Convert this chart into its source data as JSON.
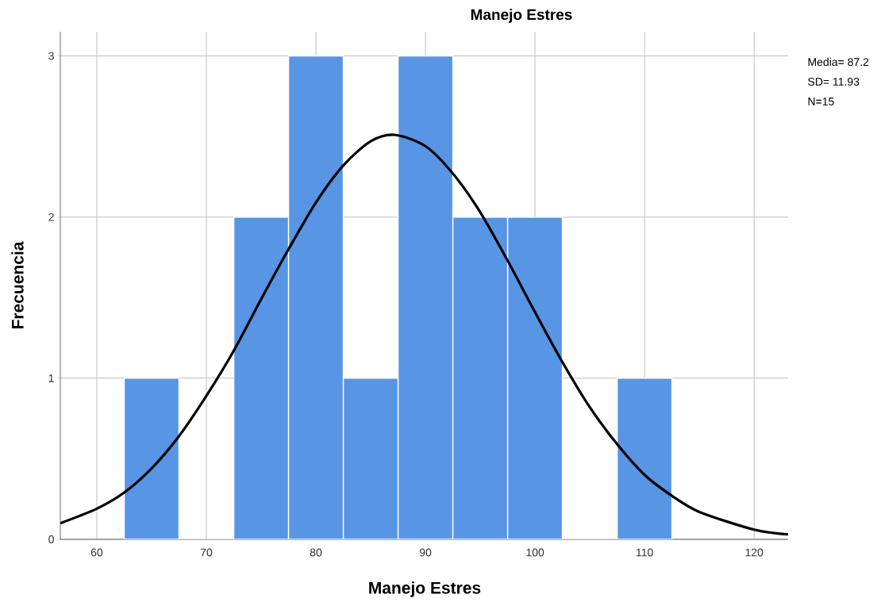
{
  "chart_data": {
    "type": "histogram",
    "title": "Manejo Estres",
    "xlabel": "Manejo Estres",
    "ylabel": "Frecuencia",
    "series": [
      {
        "type": "histogram",
        "color": "#5895e4",
        "bins": [
          62.5,
          67.5,
          72.5,
          77.5,
          82.5,
          87.5,
          92.5,
          97.5,
          102.5,
          107.5,
          112.5
        ],
        "values": [
          1,
          0,
          2,
          3,
          1,
          3,
          2,
          2,
          0,
          1
        ]
      },
      {
        "type": "line",
        "color": "#000000",
        "x": [
          56.67,
          60,
          62.5,
          65,
          67.5,
          70,
          72.5,
          75,
          77.5,
          80,
          82.5,
          85,
          87.2,
          90,
          92.5,
          95,
          97.5,
          100,
          102.5,
          105,
          107.5,
          110,
          112.5,
          115,
          120,
          123.1
        ],
        "values": [
          0.1,
          0.19,
          0.29,
          0.44,
          0.64,
          0.89,
          1.17,
          1.49,
          1.8,
          2.09,
          2.32,
          2.47,
          2.51,
          2.44,
          2.27,
          2.03,
          1.73,
          1.41,
          1.1,
          0.82,
          0.59,
          0.4,
          0.27,
          0.17,
          0.06,
          0.03
        ]
      }
    ],
    "xlim": [
      56.67,
      123.1
    ],
    "ylim": [
      0,
      3.15
    ],
    "xticks": [
      60,
      70,
      80,
      90,
      100,
      110,
      120
    ],
    "yticks": [
      0,
      1,
      2,
      3
    ],
    "grid": true,
    "annotations": [
      "Media= 87.2",
      "SD= 11.93",
      "N=15"
    ]
  }
}
